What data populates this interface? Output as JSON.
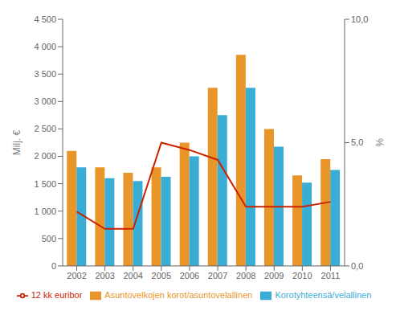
{
  "chart_data": {
    "type": "bar",
    "categories": [
      "2002",
      "2003",
      "2004",
      "2005",
      "2006",
      "2007",
      "2008",
      "2009",
      "2010",
      "2011"
    ],
    "series": [
      {
        "name": "Asuntovelkojen korot/asuntovelallinen",
        "type": "bar",
        "color": "#E8962A",
        "values": [
          2100,
          1800,
          1700,
          1800,
          2250,
          3250,
          3850,
          2500,
          1650,
          1950
        ]
      },
      {
        "name": "Korotyhteensä/velallinen",
        "type": "bar",
        "color": "#3AADD4",
        "values": [
          1800,
          1600,
          1550,
          1625,
          2000,
          2750,
          3250,
          2175,
          1520,
          1750
        ]
      },
      {
        "name": "12 kk euribor",
        "type": "line",
        "axis": "y2",
        "color": "#CC2200",
        "values": [
          2.2,
          1.5,
          1.5,
          5.0,
          4.7,
          4.3,
          2.4,
          2.4,
          2.4,
          2.6
        ]
      }
    ],
    "ylabel": "Milj. €",
    "y2label": "%",
    "ylim": [
      0,
      4500
    ],
    "yticks": [
      0,
      500,
      {
        "value": 1000,
        "label": "1 000"
      },
      {
        "value": 1500,
        "label": "1 500"
      },
      {
        "value": 2000,
        "label": "2 000"
      },
      {
        "value": 2500,
        "label": "2 500"
      },
      {
        "value": 3000,
        "label": "3 000"
      },
      {
        "value": 3500,
        "label": "3 500"
      },
      {
        "value": 4000,
        "label": "4 000"
      },
      {
        "value": 4500,
        "label": "4 500"
      }
    ],
    "y2lim": [
      0,
      10.0
    ],
    "y2ticks": [
      {
        "value": 0.0,
        "label": "0,0"
      },
      {
        "value": 5.0,
        "label": "5,0"
      },
      {
        "value": 10.0,
        "label": "10,0"
      }
    ],
    "grid": false,
    "legend": "bottom"
  }
}
